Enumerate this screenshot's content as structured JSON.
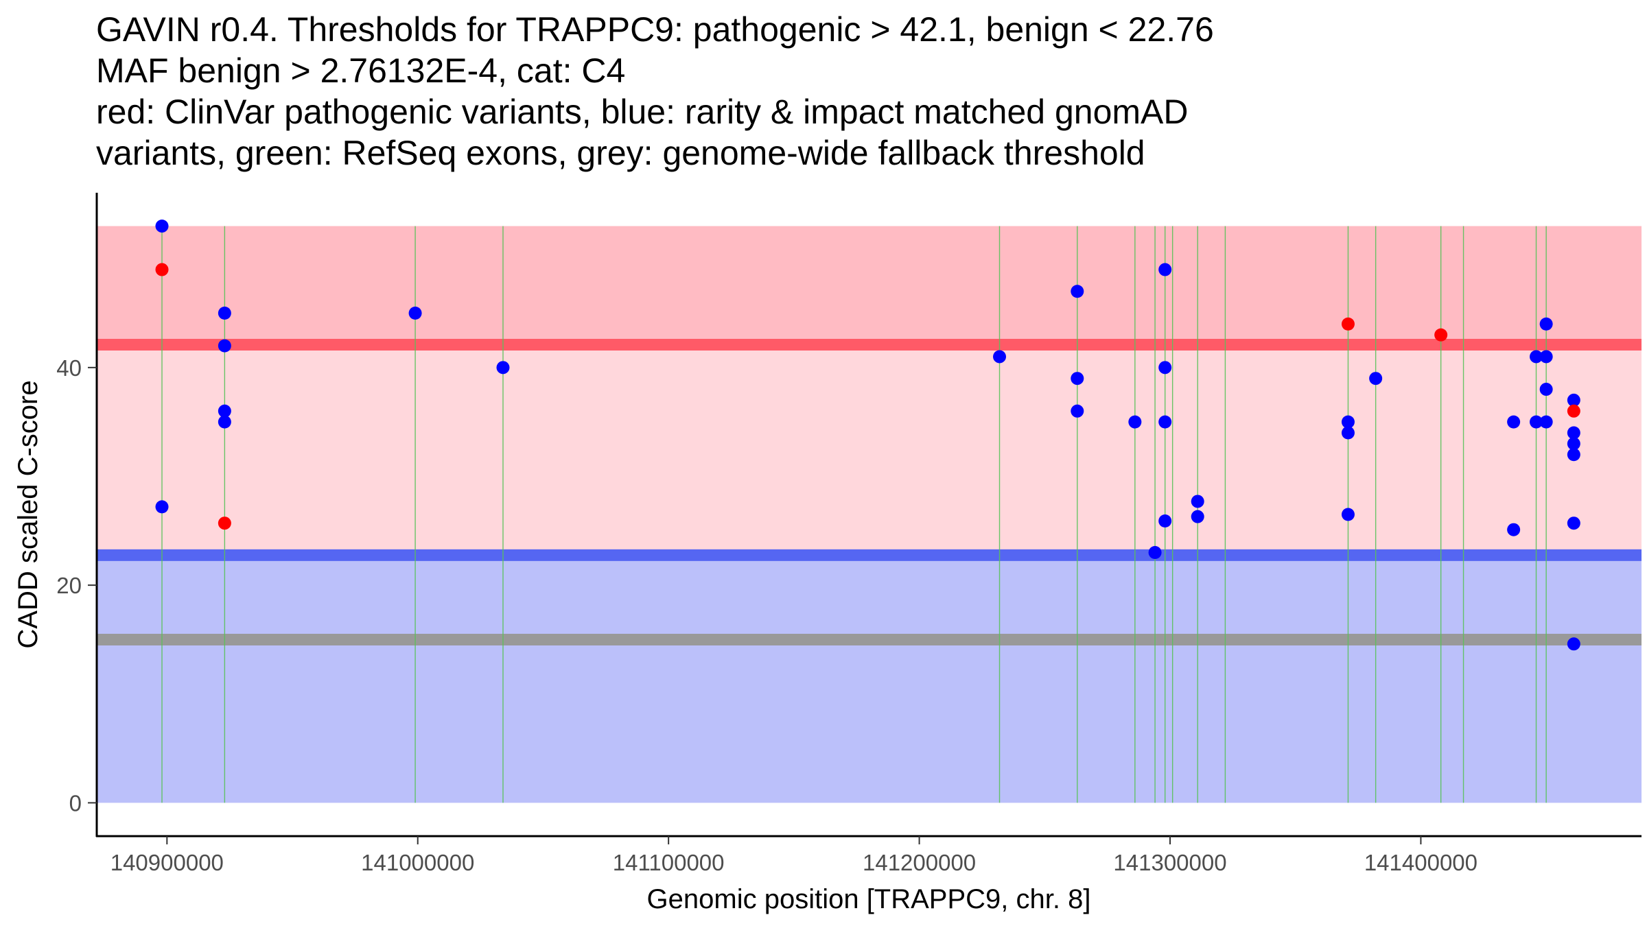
{
  "chart_data": {
    "type": "scatter",
    "title_lines": [
      "GAVIN r0.4. Thresholds for TRAPPC9: pathogenic > 42.1, benign < 22.76",
      "MAF benign > 2.76132E-4, cat: C4",
      "red: ClinVar pathogenic variants, blue: rarity & impact matched gnomAD",
      "variants, green: RefSeq exons, grey: genome-wide fallback threshold"
    ],
    "xlabel": "Genomic position [TRAPPC9, chr. 8]",
    "ylabel": "CADD scaled C-score",
    "xlim": [
      140872000,
      141488000
    ],
    "ylim": [
      -3,
      56
    ],
    "x_ticks": [
      140900000,
      141000000,
      141100000,
      141200000,
      141300000,
      141400000
    ],
    "x_tick_labels": [
      "140900000",
      "141000000",
      "141100000",
      "141200000",
      "141300000",
      "141400000"
    ],
    "y_ticks": [
      0,
      20,
      40
    ],
    "y_tick_labels": [
      "0",
      "20",
      "40"
    ],
    "grid": false,
    "thresholds": {
      "pathogenic": 42.1,
      "benign": 22.76,
      "fallback": 15,
      "region_top": 53,
      "region_bottom": 0
    },
    "colors": {
      "pathogenic_region": "#ffbbc3",
      "middle_region": "#ffd7dc",
      "benign_region": "#bbc0fa",
      "pathogenic_line": "#ff5a67",
      "benign_line": "#5566f2",
      "fallback_line": "#999999",
      "exon": "#59c259",
      "clinvar": "#ff0000",
      "gnomad": "#0000ff"
    },
    "exons": [
      140898000,
      140923000,
      140999000,
      141034000,
      141232000,
      141263000,
      141286000,
      141294000,
      141298000,
      141301000,
      141311000,
      141322000,
      141371000,
      141382000,
      141408000,
      141417000,
      141446000,
      141450000
    ],
    "series": [
      {
        "name": "ClinVar pathogenic variants",
        "color": "#ff0000",
        "x": [
          140898000,
          140923000,
          141371000,
          141408000,
          141461000
        ],
        "y": [
          49,
          25.7,
          44,
          43,
          36
        ]
      },
      {
        "name": "gnomAD matched variants",
        "color": "#0000ff",
        "x": [
          140898000,
          140898000,
          140923000,
          140923000,
          140923000,
          140923000,
          140999000,
          141034000,
          141232000,
          141263000,
          141263000,
          141263000,
          141286000,
          141294000,
          141298000,
          141298000,
          141298000,
          141298000,
          141311000,
          141311000,
          141371000,
          141371000,
          141371000,
          141382000,
          141437000,
          141437000,
          141446000,
          141446000,
          141450000,
          141450000,
          141450000,
          141450000,
          141461000,
          141461000,
          141461000,
          141461000,
          141461000,
          141461000
        ],
        "y": [
          53,
          27.2,
          45,
          42,
          36,
          35,
          45,
          40,
          41,
          47,
          39,
          36,
          35,
          23,
          49,
          40,
          35,
          25.9,
          27.7,
          26.3,
          35,
          34,
          26.5,
          39,
          35,
          25.1,
          41,
          35,
          44,
          41,
          38,
          35,
          37,
          34,
          33,
          32,
          25.7,
          14.6
        ]
      }
    ]
  }
}
